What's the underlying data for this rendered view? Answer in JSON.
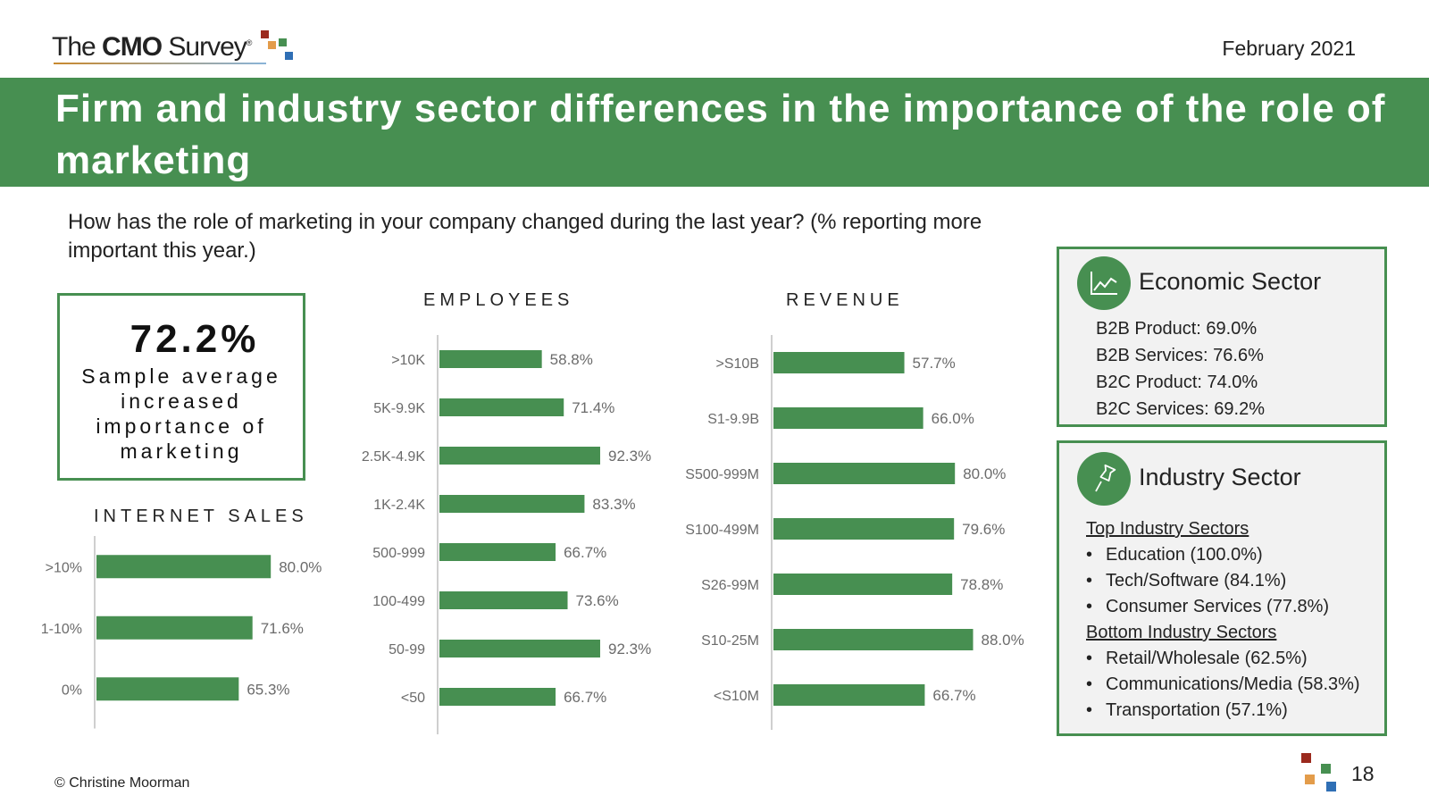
{
  "header": {
    "logo": {
      "the": "The",
      "cmo": "CMO",
      "survey": "Survey",
      "reg": "®"
    },
    "date": "February 2021",
    "title": "Firm and industry sector differences in the importance of the role of marketing"
  },
  "question": "How has the role of marketing in your company changed during the last year? (% reporting more important this year.)",
  "sample_average": {
    "value": "72.2%",
    "label": "Sample average increased importance of marketing"
  },
  "chart_data": [
    {
      "type": "bar",
      "orientation": "horizontal",
      "title": "INTERNET SALES",
      "categories": [
        ">10%",
        "1-10%",
        "0%"
      ],
      "values": [
        80.0,
        71.6,
        65.3
      ],
      "value_labels": [
        "80.0%",
        "71.6%",
        "65.3%"
      ],
      "xlim": [
        0,
        100
      ],
      "color": "#478f51"
    },
    {
      "type": "bar",
      "orientation": "horizontal",
      "title": "EMPLOYEES",
      "categories": [
        ">10K",
        "5K-9.9K",
        "2.5K-4.9K",
        "1K-2.4K",
        "500-999",
        "100-499",
        "50-99",
        "<50"
      ],
      "values": [
        58.8,
        71.4,
        92.3,
        83.3,
        66.7,
        73.6,
        92.3,
        66.7
      ],
      "value_labels": [
        "58.8%",
        "71.4%",
        "92.3%",
        "83.3%",
        "66.7%",
        "73.6%",
        "92.3%",
        "66.7%"
      ],
      "xlim": [
        0,
        100
      ],
      "color": "#478f51"
    },
    {
      "type": "bar",
      "orientation": "horizontal",
      "title": "REVENUE",
      "categories": [
        ">S10B",
        "S1-9.9B",
        "S500-999M",
        "S100-499M",
        "S26-99M",
        "S10-25M",
        "<S10M"
      ],
      "values": [
        57.7,
        66.0,
        80.0,
        79.6,
        78.8,
        88.0,
        66.7
      ],
      "value_labels": [
        "57.7%",
        "66.0%",
        "80.0%",
        "79.6%",
        "78.8%",
        "88.0%",
        "66.7%"
      ],
      "xlim": [
        0,
        100
      ],
      "color": "#478f51"
    }
  ],
  "economic_sector": {
    "title": "Economic Sector",
    "icon": "line-chart-icon",
    "items": [
      "B2B Product: 69.0%",
      "B2B Services: 76.6%",
      "B2C Product: 74.0%",
      "B2C Services: 69.2%"
    ]
  },
  "industry_sector": {
    "title": "Industry Sector",
    "icon": "pushpin-icon",
    "top_heading": "Top Industry Sectors",
    "top_items": [
      "Education (100.0%)",
      "Tech/Software (84.1%)",
      "Consumer Services (77.8%)"
    ],
    "bottom_heading": "Bottom Industry Sectors",
    "bottom_items": [
      "Retail/Wholesale (62.5%)",
      "Communications/Media (58.3%)",
      "Transportation (57.1%)"
    ],
    "bullet": "•"
  },
  "footer": {
    "copyright": "© Christine Moorman",
    "page_number": "18"
  },
  "colors": {
    "accent": "#478f51",
    "panel_bg": "#f2f2f2",
    "axis": "#cfcfcf",
    "label": "#6b6b6b"
  }
}
